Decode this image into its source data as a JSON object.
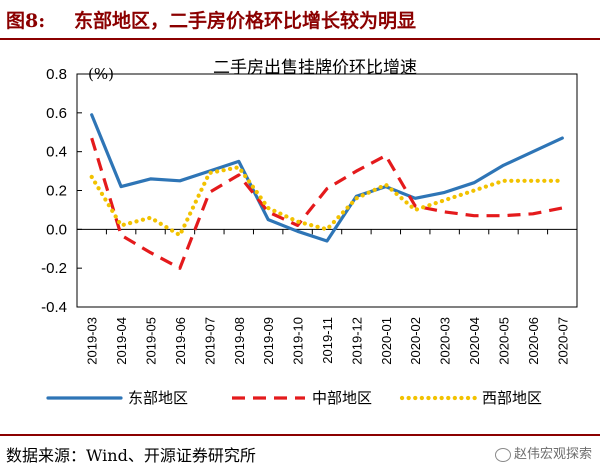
{
  "figure": {
    "number": "图8:",
    "title": "东部地区，二手房价格环比增长较为明显"
  },
  "source": "数据来源：Wind、开源证券研究所",
  "watermark": "赵伟宏观探索",
  "watermark_icon": "wechat-icon",
  "chart_data": {
    "type": "line",
    "title": "二手房出售挂牌价环比增速",
    "unit": "(%)",
    "categories": [
      "2019-03",
      "2019-04",
      "2019-05",
      "2019-06",
      "2019-07",
      "2019-08",
      "2019-09",
      "2019-10",
      "2019-11",
      "2019-12",
      "2020-01",
      "2020-02",
      "2020-03",
      "2020-04",
      "2020-05",
      "2020-06",
      "2020-07"
    ],
    "ylim": [
      -0.4,
      0.8
    ],
    "yticks": [
      "0.8",
      "0.6",
      "0.4",
      "0.2",
      "0.0",
      "-0.2",
      "-0.4"
    ],
    "ytick_values": [
      0.8,
      0.6,
      0.4,
      0.2,
      0.0,
      -0.2,
      -0.4
    ],
    "legend_position": "bottom",
    "grid": false,
    "series": [
      {
        "name": "东部地区",
        "style": "solid",
        "color": "#2e75b6",
        "values": [
          0.59,
          0.22,
          0.26,
          0.25,
          0.3,
          0.35,
          0.05,
          -0.01,
          -0.06,
          0.17,
          0.22,
          0.16,
          0.19,
          0.24,
          0.33,
          0.4,
          0.47
        ]
      },
      {
        "name": "中部地区",
        "style": "dashed",
        "color": "#e41a1c",
        "values": [
          0.47,
          -0.03,
          -0.12,
          -0.2,
          0.19,
          0.28,
          0.09,
          0.02,
          0.21,
          0.3,
          0.38,
          0.12,
          0.09,
          0.07,
          0.07,
          0.08,
          0.11
        ]
      },
      {
        "name": "西部地区",
        "style": "dotted",
        "color": "#f2c200",
        "values": [
          0.27,
          0.02,
          0.06,
          -0.03,
          0.29,
          0.32,
          0.11,
          0.04,
          0.0,
          0.16,
          0.23,
          0.1,
          0.15,
          0.2,
          0.25,
          0.25,
          0.25
        ]
      }
    ]
  }
}
